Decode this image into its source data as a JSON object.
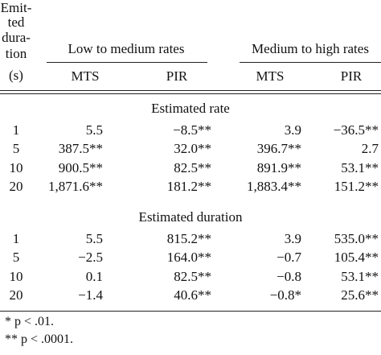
{
  "stub_header": [
    "Emit-",
    "ted",
    "dura-",
    "tion",
    "(s)"
  ],
  "groups": [
    "Low to medium rates",
    "Medium to high rates"
  ],
  "columns": [
    "MTS",
    "PIR",
    "MTS",
    "PIR"
  ],
  "sections": [
    {
      "title": "Estimated rate",
      "rows": [
        [
          "1",
          "5.5",
          "−8.5**",
          "3.9",
          "−36.5**"
        ],
        [
          "5",
          "387.5**",
          "32.0**",
          "396.7**",
          "2.7"
        ],
        [
          "10",
          "900.5**",
          "82.5**",
          "891.9**",
          "53.1**"
        ],
        [
          "20",
          "1,871.6**",
          "181.2**",
          "1,883.4**",
          "151.2**"
        ]
      ]
    },
    {
      "title": "Estimated duration",
      "rows": [
        [
          "1",
          "5.5",
          "815.2**",
          "3.9",
          "535.0**"
        ],
        [
          "5",
          "−2.5",
          "164.0**",
          "−0.7",
          "105.4**"
        ],
        [
          "10",
          "0.1",
          "82.5**",
          "−0.8",
          "53.1**"
        ],
        [
          "20",
          "−1.4",
          "40.6**",
          "−0.8*",
          "25.6**"
        ]
      ]
    }
  ],
  "footnotes": [
    "* p < .01.",
    "** p < .0001."
  ]
}
